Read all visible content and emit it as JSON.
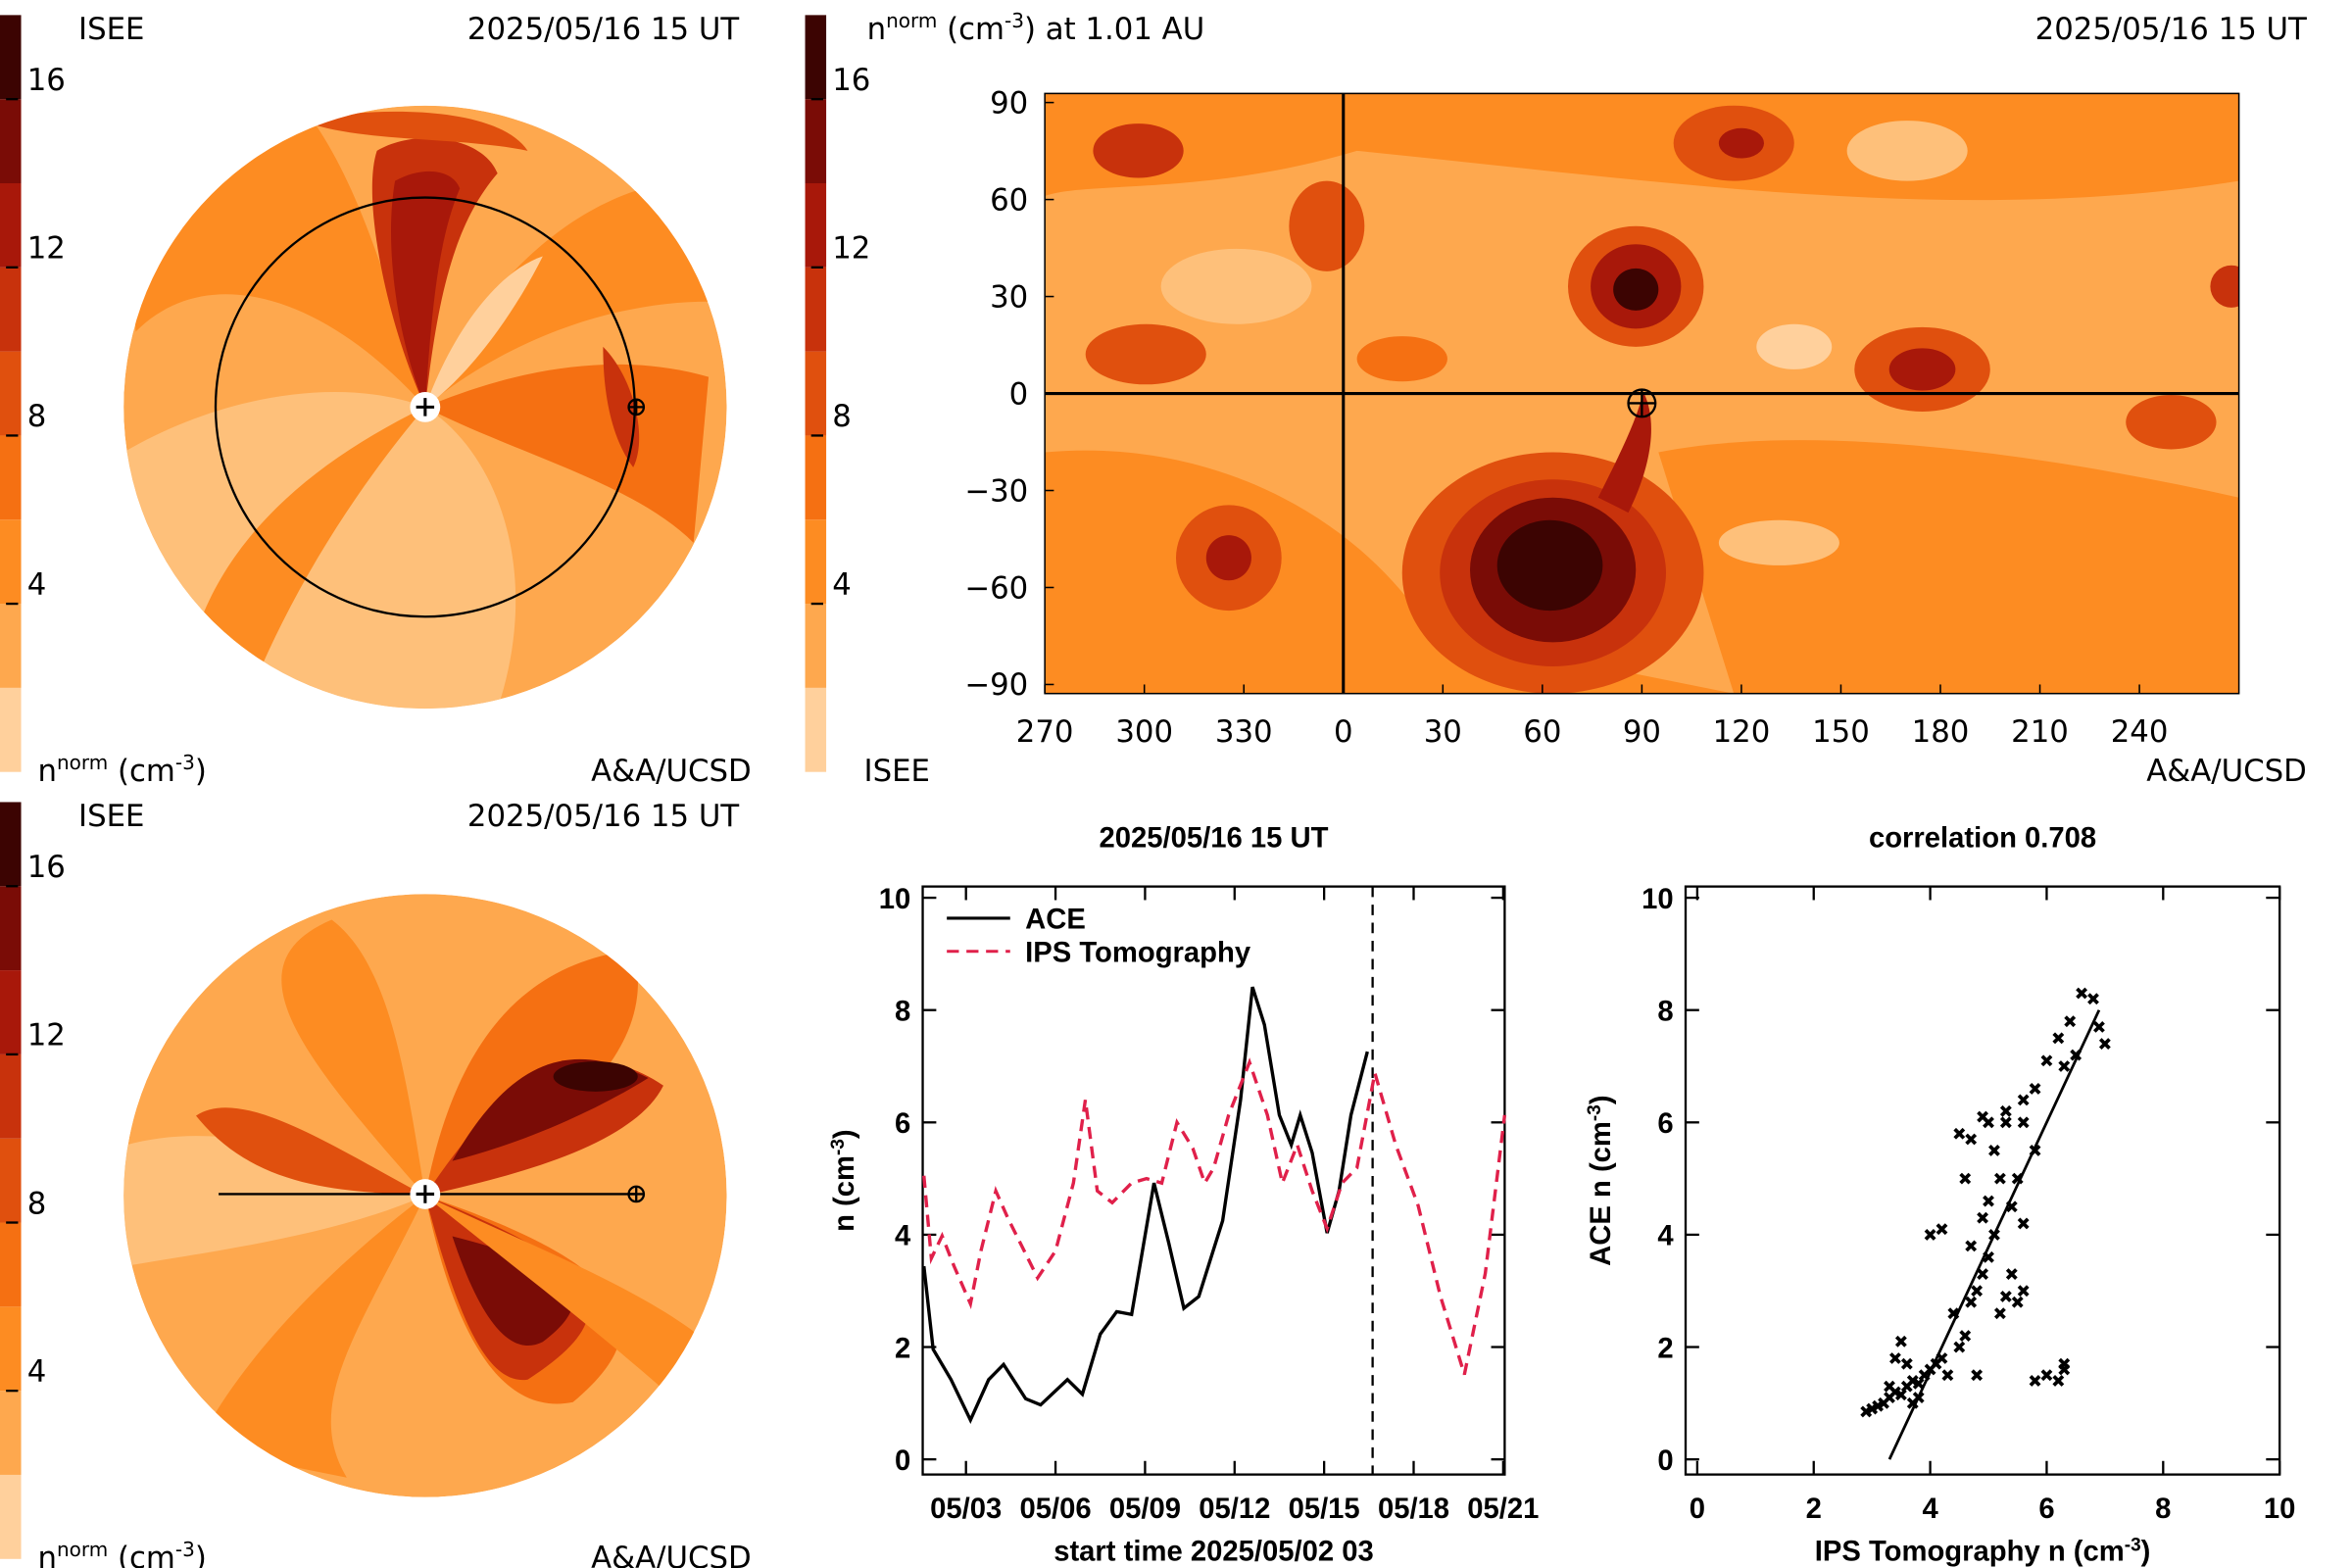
{
  "chart_data": [
    {
      "type": "polar_contour",
      "label": "ISEE",
      "date": "2025/05/16 15 UT",
      "credit": "A&A/UCSD",
      "orbit": "circle",
      "colorbar": {
        "label": [
          "n",
          "norm",
          " (cm",
          "-3",
          ")"
        ],
        "lim": [
          0,
          18
        ],
        "ticks": [
          4,
          8,
          12,
          16
        ],
        "colors": [
          "#ffd09c",
          "#fea84e",
          "#fd8c22",
          "#f57012",
          "#e0500e",
          "#c8320c",
          "#a8180a",
          "#7a0c06",
          "#3c0402"
        ]
      }
    },
    {
      "type": "polar_contour",
      "label": "ISEE",
      "date": "2025/05/16 15 UT",
      "credit": "A&A/UCSD",
      "orbit": "line",
      "colorbar": {
        "label": [
          "n",
          "norm",
          " (cm",
          "-3",
          ")"
        ],
        "lim": [
          0,
          18
        ],
        "ticks": [
          4,
          8,
          12,
          16
        ],
        "colors": [
          "#ffd09c",
          "#fea84e",
          "#fd8c22",
          "#f57012",
          "#e0500e",
          "#c8320c",
          "#a8180a",
          "#7a0c06",
          "#3c0402"
        ]
      }
    },
    {
      "type": "map_contour",
      "title": [
        "n",
        "norm",
        " (cm",
        "-3",
        ") at 1.01 AU"
      ],
      "date": "2025/05/16 15 UT",
      "label": "ISEE",
      "credit": "A&A/UCSD",
      "xlim": [
        270,
        630
      ],
      "xticks": [
        270,
        300,
        330,
        {
          "value": 360,
          "label": "0"
        },
        {
          "value": 390,
          "label": "30"
        },
        {
          "value": 420,
          "label": "60"
        },
        {
          "value": 450,
          "label": "90"
        },
        {
          "value": 480,
          "label": "120"
        },
        {
          "value": 510,
          "label": "150"
        },
        {
          "value": 540,
          "label": "180"
        },
        {
          "value": 570,
          "label": "210"
        },
        {
          "value": 600,
          "label": "240"
        }
      ],
      "ylim": [
        -92.8,
        92.8
      ],
      "yticks": [
        90,
        60,
        30,
        0,
        {
          "value": -30,
          "label": "−30"
        },
        {
          "value": -60,
          "label": "−60"
        },
        {
          "value": -90,
          "label": "−90"
        }
      ],
      "crosshair": [
        360,
        0
      ],
      "earth": [
        450,
        -3
      ],
      "colorbar": {
        "lim": [
          0,
          18
        ],
        "ticks": [
          4,
          8,
          12,
          16
        ],
        "colors": [
          "#ffd09c",
          "#fea84e",
          "#fd8c22",
          "#f57012",
          "#e0500e",
          "#c8320c",
          "#a8180a",
          "#7a0c06",
          "#3c0402"
        ]
      }
    },
    {
      "type": "line",
      "title": "2025/05/16 15 UT",
      "xlabel": "start time 2025/05/02 03",
      "ylabel": [
        "n (cm",
        "-3",
        ")"
      ],
      "xlim": [
        1.55,
        21.05
      ],
      "xticks": [
        {
          "value": 3,
          "label": "05/03"
        },
        {
          "value": 6,
          "label": "05/06"
        },
        {
          "value": 9,
          "label": "05/09"
        },
        {
          "value": 12,
          "label": "05/12"
        },
        {
          "value": 15,
          "label": "05/15"
        },
        {
          "value": 18,
          "label": "05/18"
        },
        {
          "value": 21,
          "label": "05/21"
        }
      ],
      "ylim": [
        -0.27,
        10.2
      ],
      "yticks": [
        0,
        2,
        4,
        6,
        8,
        10
      ],
      "now": 16.625,
      "series": [
        {
          "name": "ACE",
          "color": "#000000",
          "dash": false,
          "x": [
            1.59,
            1.9,
            2.5,
            3.15,
            3.76,
            4.26,
            5.0,
            5.5,
            6.4,
            6.9,
            7.5,
            8.05,
            8.55,
            9.3,
            9.8,
            10.3,
            10.8,
            11.6,
            12.2,
            12.6,
            13.0,
            13.5,
            13.9,
            14.2,
            14.6,
            15.1,
            15.5,
            15.9,
            16.45
          ],
          "values": [
            3.44,
            1.96,
            1.42,
            0.7,
            1.42,
            1.69,
            1.08,
            0.97,
            1.42,
            1.16,
            2.23,
            2.63,
            2.58,
            4.92,
            3.84,
            2.69,
            2.9,
            4.25,
            6.4,
            8.41,
            7.74,
            6.13,
            5.6,
            6.13,
            5.46,
            4.03,
            4.78,
            6.13,
            7.26
          ]
        },
        {
          "name": "IPS Tomography",
          "color": "#e0204a",
          "dash": true,
          "x": [
            1.59,
            1.84,
            2.2,
            2.6,
            3.15,
            3.5,
            4.0,
            4.4,
            5.0,
            5.4,
            6.0,
            6.6,
            7.0,
            7.4,
            7.9,
            8.55,
            9.05,
            9.56,
            10.07,
            10.6,
            11.0,
            11.3,
            11.8,
            12.5,
            13.1,
            13.6,
            14.1,
            14.6,
            15.1,
            15.6,
            16.1,
            16.7,
            17.4,
            18.15,
            18.9,
            19.7,
            20.4,
            21.05
          ],
          "values": [
            5.05,
            3.58,
            3.98,
            3.44,
            2.77,
            3.71,
            4.78,
            4.3,
            3.66,
            3.23,
            3.71,
            4.92,
            6.4,
            4.78,
            4.57,
            4.92,
            5.0,
            4.92,
            6.0,
            5.54,
            4.92,
            5.19,
            6.13,
            7.07,
            6.13,
            4.92,
            5.6,
            4.78,
            4.11,
            4.92,
            5.19,
            6.88,
            5.6,
            4.52,
            2.9,
            1.51,
            3.31,
            6.13
          ]
        }
      ]
    },
    {
      "type": "scatter",
      "title": "correlation 0.708",
      "xlabel": [
        "IPS Tomography n (cm",
        "-3",
        ")"
      ],
      "ylabel": [
        "ACE n (cm",
        "-3",
        ")"
      ],
      "xlim": [
        -0.2,
        10
      ],
      "xticks": [
        0,
        2,
        4,
        6,
        8,
        10
      ],
      "ylim": [
        -0.27,
        10.2
      ],
      "yticks": [
        0,
        2,
        4,
        6,
        8,
        10
      ],
      "color": "#000000",
      "x": [
        2.9,
        3.0,
        3.1,
        3.2,
        3.3,
        3.4,
        3.5,
        3.6,
        3.7,
        3.8,
        3.6,
        3.5,
        3.9,
        4.0,
        4.1,
        3.8,
        4.2,
        3.4,
        3.3,
        3.7,
        4.3,
        4.5,
        4.4,
        4.6,
        4.7,
        4.8,
        4.9,
        4.7,
        5.0,
        5.1,
        4.9,
        5.2,
        5.3,
        5.5,
        5.6,
        5.4,
        5.0,
        5.2,
        5.1,
        4.7,
        4.5,
        4.9,
        5.0,
        5.3,
        5.6,
        5.8,
        6.0,
        6.2,
        6.4,
        6.6,
        6.8,
        6.9,
        7.0,
        6.5,
        6.3,
        5.8,
        5.5,
        5.4,
        5.6,
        4.0,
        4.2,
        5.8,
        6.0,
        6.2,
        6.3,
        6.3,
        4.8,
        5.6,
        5.3,
        4.6
      ],
      "y": [
        0.85,
        0.9,
        0.95,
        1.0,
        1.1,
        1.2,
        1.15,
        1.3,
        1.4,
        1.35,
        1.7,
        2.1,
        1.5,
        1.6,
        1.7,
        1.1,
        1.8,
        1.8,
        1.3,
        1.0,
        1.5,
        2.0,
        2.6,
        2.2,
        2.8,
        3.0,
        3.3,
        3.8,
        3.6,
        4.0,
        4.3,
        2.6,
        2.9,
        2.8,
        3.0,
        3.3,
        4.6,
        5.0,
        5.5,
        5.7,
        5.8,
        6.1,
        6.0,
        6.2,
        6.4,
        6.6,
        7.1,
        7.5,
        7.8,
        8.3,
        8.2,
        7.7,
        7.4,
        7.2,
        7.0,
        5.5,
        5.0,
        4.5,
        4.2,
        4.0,
        4.1,
        1.4,
        1.5,
        1.4,
        1.6,
        1.7,
        1.5,
        6.0,
        6.0,
        5.0
      ],
      "fit": {
        "x": [
          3.3,
          6.9
        ],
        "y": [
          0,
          8
        ]
      }
    }
  ]
}
